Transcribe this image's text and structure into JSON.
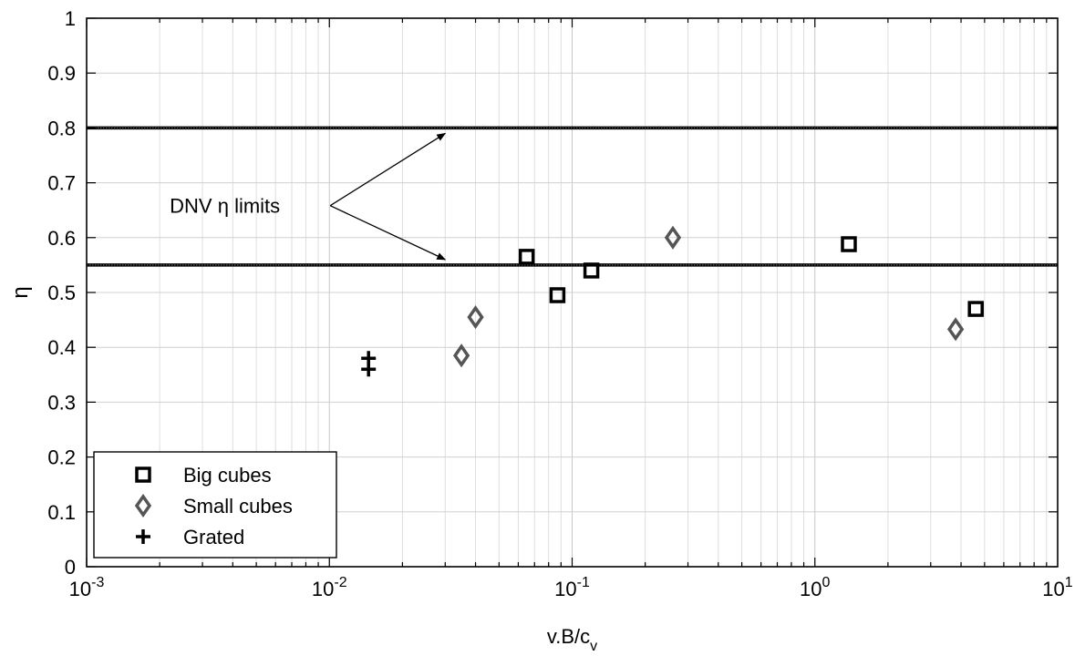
{
  "chart_data": {
    "type": "scatter",
    "xlabel": "v.B/c",
    "xlabel_sub": "v",
    "ylabel": "η",
    "xscale": "log",
    "xlim": [
      0.001,
      10
    ],
    "ylim": [
      0,
      1
    ],
    "grid": true,
    "legend_position": "bottom-left",
    "x_tick_labels": [
      {
        "value": 0.001,
        "base": "10",
        "exp": "-3"
      },
      {
        "value": 0.01,
        "base": "10",
        "exp": "-2"
      },
      {
        "value": 0.1,
        "base": "10",
        "exp": "-1"
      },
      {
        "value": 1,
        "base": "10",
        "exp": "0"
      },
      {
        "value": 10,
        "base": "10",
        "exp": "1"
      }
    ],
    "y_ticks": [
      0,
      0.1,
      0.2,
      0.3,
      0.4,
      0.5,
      0.6,
      0.7,
      0.8,
      0.9,
      1
    ],
    "y_tick_labels": [
      "0",
      "0.1",
      "0.2",
      "0.3",
      "0.4",
      "0.5",
      "0.6",
      "0.7",
      "0.8",
      "0.9",
      "1"
    ],
    "series": [
      {
        "name": "Big cubes",
        "marker": "square",
        "color": "#000000",
        "points": [
          {
            "x": 0.065,
            "y": 0.565
          },
          {
            "x": 0.087,
            "y": 0.495
          },
          {
            "x": 0.12,
            "y": 0.54
          },
          {
            "x": 1.38,
            "y": 0.588
          },
          {
            "x": 4.6,
            "y": 0.47
          }
        ]
      },
      {
        "name": "Small cubes",
        "marker": "diamond",
        "color": "#555555",
        "points": [
          {
            "x": 0.035,
            "y": 0.385
          },
          {
            "x": 0.04,
            "y": 0.455
          },
          {
            "x": 0.26,
            "y": 0.6
          },
          {
            "x": 3.8,
            "y": 0.433
          }
        ]
      },
      {
        "name": "Grated",
        "marker": "plus",
        "color": "#000000",
        "points": [
          {
            "x": 0.0145,
            "y": 0.38
          },
          {
            "x": 0.0145,
            "y": 0.36
          }
        ]
      }
    ],
    "reference_lines": [
      {
        "y": 0.8
      },
      {
        "y": 0.55
      }
    ],
    "annotation": {
      "text": "DNV η limits",
      "position": {
        "x": 0.0022,
        "y": 0.645
      },
      "arrows_to": [
        {
          "x": 0.03,
          "y": 0.8
        },
        {
          "x": 0.03,
          "y": 0.55
        }
      ]
    }
  }
}
